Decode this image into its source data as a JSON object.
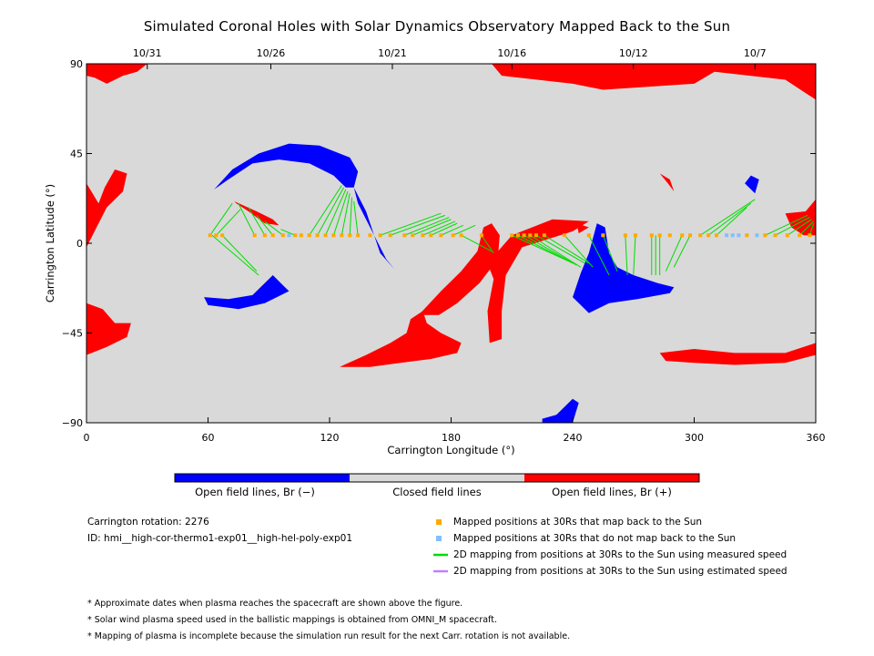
{
  "title": "Simulated Coronal Holes with Solar Dynamics Observatory Mapped Back to the Sun",
  "colors": {
    "closed": "#d9d9d9",
    "open_negative": "#0000ff",
    "open_positive": "#ff0000",
    "mapped_back": "#ffaa00",
    "not_mapped": "#80c0ff",
    "measured_speed": "#00dd00",
    "estimated_speed": "#c080ff"
  },
  "chart_data": {
    "type": "map",
    "xlabel": "Carrington Longitude (°)",
    "ylabel": "Carrington Latitude (°)",
    "xlim": [
      0,
      360
    ],
    "ylim": [
      -90,
      90
    ],
    "x_ticks": [
      0,
      60,
      120,
      180,
      240,
      300,
      360
    ],
    "y_ticks": [
      90,
      45,
      0,
      -45,
      -90
    ],
    "y_tick_labels": [
      "90",
      "45",
      "0",
      "−45",
      "−90"
    ],
    "top_axis_dates": [
      {
        "label": "10/31",
        "lon": 30
      },
      {
        "label": "10/26",
        "lon": 91
      },
      {
        "label": "10/21",
        "lon": 151
      },
      {
        "label": "10/16",
        "lon": 210
      },
      {
        "label": "10/12",
        "lon": 270
      },
      {
        "label": "10/7",
        "lon": 330
      }
    ],
    "mapped_points": [
      {
        "lon": 61,
        "lat": 4,
        "maps_back": true
      },
      {
        "lon": 64,
        "lat": 4,
        "maps_back": true
      },
      {
        "lon": 67,
        "lat": 4,
        "maps_back": true
      },
      {
        "lon": 83,
        "lat": 4,
        "maps_back": true
      },
      {
        "lon": 88,
        "lat": 4,
        "maps_back": true
      },
      {
        "lon": 92,
        "lat": 4,
        "maps_back": true
      },
      {
        "lon": 97,
        "lat": 4,
        "maps_back": true
      },
      {
        "lon": 100,
        "lat": 4,
        "maps_back": false
      },
      {
        "lon": 103,
        "lat": 4,
        "maps_back": true
      },
      {
        "lon": 106,
        "lat": 4,
        "maps_back": true
      },
      {
        "lon": 110,
        "lat": 4,
        "maps_back": true
      },
      {
        "lon": 114,
        "lat": 4,
        "maps_back": true
      },
      {
        "lon": 118,
        "lat": 4,
        "maps_back": true
      },
      {
        "lon": 122,
        "lat": 4,
        "maps_back": true
      },
      {
        "lon": 126,
        "lat": 4,
        "maps_back": true
      },
      {
        "lon": 130,
        "lat": 4,
        "maps_back": true
      },
      {
        "lon": 134,
        "lat": 4,
        "maps_back": true
      },
      {
        "lon": 140,
        "lat": 4,
        "maps_back": true
      },
      {
        "lon": 145,
        "lat": 4,
        "maps_back": true
      },
      {
        "lon": 150,
        "lat": 4,
        "maps_back": true
      },
      {
        "lon": 157,
        "lat": 4,
        "maps_back": true
      },
      {
        "lon": 161,
        "lat": 4,
        "maps_back": true
      },
      {
        "lon": 166,
        "lat": 4,
        "maps_back": true
      },
      {
        "lon": 170,
        "lat": 4,
        "maps_back": true
      },
      {
        "lon": 175,
        "lat": 4,
        "maps_back": true
      },
      {
        "lon": 181,
        "lat": 4,
        "maps_back": true
      },
      {
        "lon": 185,
        "lat": 4,
        "maps_back": true
      },
      {
        "lon": 195,
        "lat": 4,
        "maps_back": true
      },
      {
        "lon": 210,
        "lat": 4,
        "maps_back": true
      },
      {
        "lon": 213,
        "lat": 4,
        "maps_back": true
      },
      {
        "lon": 216,
        "lat": 4,
        "maps_back": true
      },
      {
        "lon": 219,
        "lat": 4,
        "maps_back": true
      },
      {
        "lon": 222,
        "lat": 4,
        "maps_back": true
      },
      {
        "lon": 226,
        "lat": 4,
        "maps_back": true
      },
      {
        "lon": 236,
        "lat": 4,
        "maps_back": true
      },
      {
        "lon": 248,
        "lat": 4,
        "maps_back": true
      },
      {
        "lon": 255,
        "lat": 4,
        "maps_back": true
      },
      {
        "lon": 266,
        "lat": 4,
        "maps_back": true
      },
      {
        "lon": 271,
        "lat": 4,
        "maps_back": true
      },
      {
        "lon": 279,
        "lat": 4,
        "maps_back": true
      },
      {
        "lon": 283,
        "lat": 4,
        "maps_back": true
      },
      {
        "lon": 288,
        "lat": 4,
        "maps_back": true
      },
      {
        "lon": 294,
        "lat": 4,
        "maps_back": true
      },
      {
        "lon": 298,
        "lat": 4,
        "maps_back": true
      },
      {
        "lon": 303,
        "lat": 4,
        "maps_back": true
      },
      {
        "lon": 307,
        "lat": 4,
        "maps_back": true
      },
      {
        "lon": 311,
        "lat": 4,
        "maps_back": true
      },
      {
        "lon": 316,
        "lat": 4,
        "maps_back": false
      },
      {
        "lon": 319,
        "lat": 4,
        "maps_back": false
      },
      {
        "lon": 322,
        "lat": 4,
        "maps_back": false
      },
      {
        "lon": 326,
        "lat": 4,
        "maps_back": true
      },
      {
        "lon": 331,
        "lat": 4,
        "maps_back": false
      },
      {
        "lon": 335,
        "lat": 4,
        "maps_back": true
      },
      {
        "lon": 340,
        "lat": 4,
        "maps_back": true
      },
      {
        "lon": 346,
        "lat": 4,
        "maps_back": true
      },
      {
        "lon": 352,
        "lat": 4,
        "maps_back": true
      },
      {
        "lon": 357,
        "lat": 4,
        "maps_back": true
      }
    ],
    "field_lines_measured": [
      {
        "from": [
          61,
          4
        ],
        "to": [
          72,
          20
        ]
      },
      {
        "from": [
          64,
          4
        ],
        "to": [
          76,
          17
        ]
      },
      {
        "from": [
          67,
          4
        ],
        "to": [
          84,
          -14
        ]
      },
      {
        "from": [
          62,
          4
        ],
        "to": [
          85,
          -16
        ]
      },
      {
        "from": [
          83,
          4
        ],
        "to": [
          75,
          20
        ]
      },
      {
        "from": [
          88,
          4
        ],
        "to": [
          80,
          18
        ]
      },
      {
        "from": [
          92,
          4
        ],
        "to": [
          84,
          14
        ]
      },
      {
        "from": [
          97,
          4
        ],
        "to": [
          88,
          11
        ]
      },
      {
        "from": [
          103,
          4
        ],
        "to": [
          96,
          7
        ]
      },
      {
        "from": [
          110,
          4
        ],
        "to": [
          126,
          29
        ]
      },
      {
        "from": [
          114,
          4
        ],
        "to": [
          127,
          28
        ]
      },
      {
        "from": [
          118,
          4
        ],
        "to": [
          128,
          27
        ]
      },
      {
        "from": [
          122,
          4
        ],
        "to": [
          129,
          26
        ]
      },
      {
        "from": [
          126,
          4
        ],
        "to": [
          130,
          25
        ]
      },
      {
        "from": [
          130,
          4
        ],
        "to": [
          131,
          23
        ]
      },
      {
        "from": [
          134,
          4
        ],
        "to": [
          132,
          21
        ]
      },
      {
        "from": [
          145,
          4
        ],
        "to": [
          175,
          15
        ]
      },
      {
        "from": [
          150,
          4
        ],
        "to": [
          177,
          14
        ]
      },
      {
        "from": [
          157,
          4
        ],
        "to": [
          179,
          13
        ]
      },
      {
        "from": [
          161,
          4
        ],
        "to": [
          180,
          12
        ]
      },
      {
        "from": [
          166,
          4
        ],
        "to": [
          182,
          11
        ]
      },
      {
        "from": [
          170,
          4
        ],
        "to": [
          183,
          10
        ]
      },
      {
        "from": [
          175,
          4
        ],
        "to": [
          186,
          9
        ]
      },
      {
        "from": [
          181,
          4
        ],
        "to": [
          192,
          9
        ]
      },
      {
        "from": [
          185,
          4
        ],
        "to": [
          200,
          -4
        ]
      },
      {
        "from": [
          195,
          4
        ],
        "to": [
          201,
          -5
        ]
      },
      {
        "from": [
          210,
          4
        ],
        "to": [
          238,
          -9
        ]
      },
      {
        "from": [
          213,
          4
        ],
        "to": [
          240,
          -10
        ]
      },
      {
        "from": [
          216,
          4
        ],
        "to": [
          242,
          -11
        ]
      },
      {
        "from": [
          219,
          4
        ],
        "to": [
          244,
          -12
        ]
      },
      {
        "from": [
          222,
          4
        ],
        "to": [
          246,
          -10
        ]
      },
      {
        "from": [
          226,
          4
        ],
        "to": [
          248,
          -10
        ]
      },
      {
        "from": [
          236,
          4
        ],
        "to": [
          250,
          -12
        ]
      },
      {
        "from": [
          248,
          4
        ],
        "to": [
          258,
          -16
        ]
      },
      {
        "from": [
          255,
          4
        ],
        "to": [
          262,
          -14
        ]
      },
      {
        "from": [
          266,
          4
        ],
        "to": [
          267,
          -16
        ]
      },
      {
        "from": [
          271,
          4
        ],
        "to": [
          270,
          -16
        ]
      },
      {
        "from": [
          279,
          4
        ],
        "to": [
          279,
          -16
        ]
      },
      {
        "from": [
          281,
          4
        ],
        "to": [
          281,
          -16
        ]
      },
      {
        "from": [
          283,
          4
        ],
        "to": [
          283,
          -16
        ]
      },
      {
        "from": [
          294,
          4
        ],
        "to": [
          286,
          -14
        ]
      },
      {
        "from": [
          298,
          4
        ],
        "to": [
          290,
          -12
        ]
      },
      {
        "from": [
          303,
          4
        ],
        "to": [
          330,
          22
        ]
      },
      {
        "from": [
          307,
          4
        ],
        "to": [
          328,
          20
        ]
      },
      {
        "from": [
          311,
          4
        ],
        "to": [
          326,
          18
        ]
      },
      {
        "from": [
          335,
          4
        ],
        "to": [
          356,
          14
        ]
      },
      {
        "from": [
          340,
          4
        ],
        "to": [
          357,
          13
        ]
      },
      {
        "from": [
          346,
          4
        ],
        "to": [
          358,
          12
        ]
      },
      {
        "from": [
          352,
          4
        ],
        "to": [
          359,
          11
        ]
      },
      {
        "from": [
          357,
          4
        ],
        "to": [
          359,
          10
        ]
      }
    ]
  },
  "colorbar": {
    "left_label": "Open field lines, Br (−)",
    "middle_label": "Closed field lines",
    "right_label": "Open field lines, Br (+)"
  },
  "info": {
    "rotation": "Carrington rotation: 2276",
    "id": "ID: hmi__high-cor-thermo1-exp01__high-hel-poly-exp01"
  },
  "legend": [
    {
      "label": "Mapped positions at 30Rs that map back to the Sun",
      "kind": "square",
      "color_key": "mapped_back"
    },
    {
      "label": "Mapped positions at 30Rs that do not map back to the Sun",
      "kind": "square",
      "color_key": "not_mapped"
    },
    {
      "label": "2D mapping from positions at 30Rs to the Sun using measured speed",
      "kind": "line",
      "color_key": "measured_speed"
    },
    {
      "label": "2D mapping from positions at 30Rs to the Sun using estimated speed",
      "kind": "line",
      "color_key": "estimated_speed"
    }
  ],
  "notes": [
    "* Approximate dates when plasma reaches the spacecraft are shown above the figure.",
    "* Solar wind plasma speed used in the ballistic mappings is obtained from OMNI_M spacecraft.",
    "* Mapping of plasma is incomplete because the simulation run result for the next Carr. rotation is not available."
  ]
}
